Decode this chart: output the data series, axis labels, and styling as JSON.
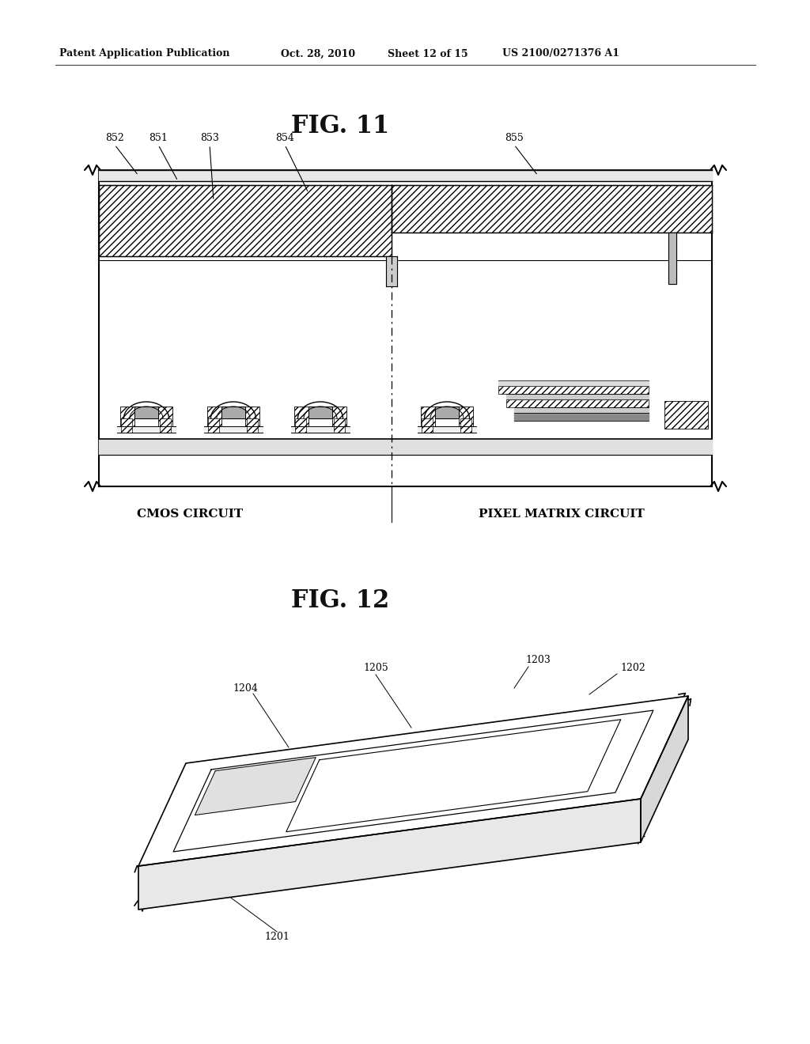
{
  "background_color": "#ffffff",
  "header_text": "Patent Application Publication",
  "header_date": "Oct. 28, 2010",
  "header_sheet": "Sheet 12 of 15",
  "header_patent": "US 2100/0271376 A1",
  "fig11_title": "FIG. 11",
  "fig12_title": "FIG. 12",
  "cmos_label": "CMOS CIRCUIT",
  "pixel_label": "PIXEL MATRIX CIRCUIT",
  "fig11_ref_labels": [
    "852",
    "851",
    "853",
    "854",
    "855"
  ],
  "fig12_ref_labels": [
    "1201",
    "1202",
    "1203",
    "1204",
    "1205"
  ]
}
